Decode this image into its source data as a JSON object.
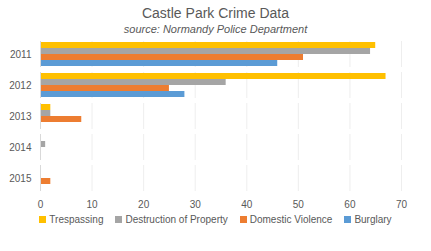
{
  "chart_data": {
    "type": "bar",
    "orientation": "horizontal",
    "title": "Castle Park Crime Data",
    "subtitle": "source: Normandy Police Department",
    "categories": [
      "2011",
      "2012",
      "2013",
      "2014",
      "2015"
    ],
    "series": [
      {
        "name": "Trespassing",
        "color": "#ffc000",
        "values": [
          65,
          67,
          2,
          0,
          0
        ]
      },
      {
        "name": "Destruction of Property",
        "color": "#a5a5a5",
        "values": [
          64,
          36,
          2,
          1,
          0
        ]
      },
      {
        "name": "Domestic Violence",
        "color": "#ed7d31",
        "values": [
          51,
          25,
          8,
          0,
          2
        ]
      },
      {
        "name": "Burglary",
        "color": "#5b9bd5",
        "values": [
          46,
          28,
          0,
          0,
          0
        ]
      }
    ],
    "xlim": [
      0,
      70
    ],
    "xticks": [
      0,
      10,
      20,
      30,
      40,
      50,
      60,
      70
    ],
    "grid": true,
    "legend": "bottom"
  }
}
